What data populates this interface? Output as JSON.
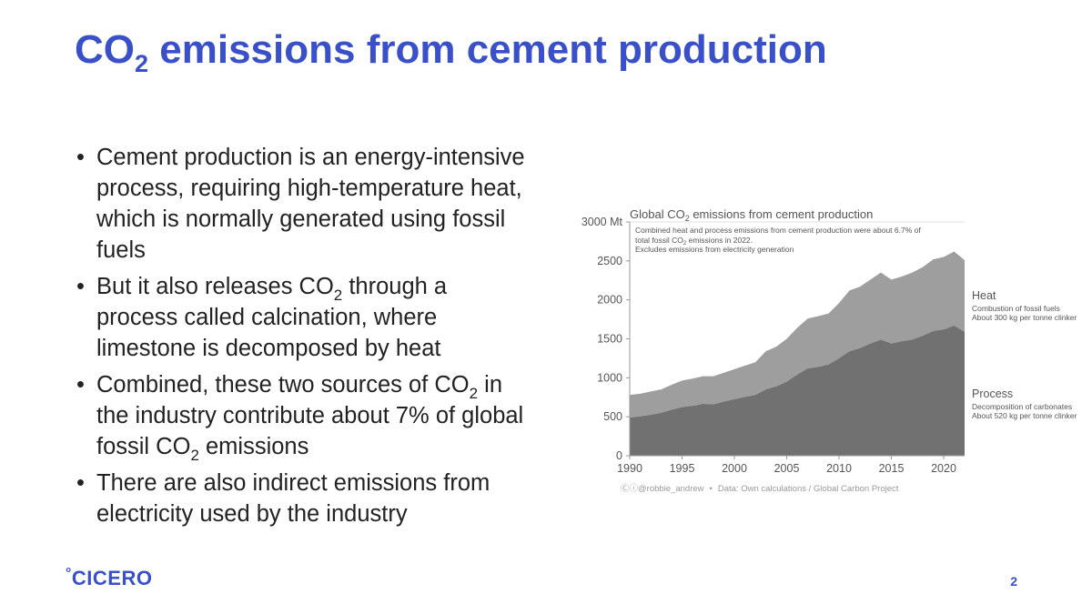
{
  "slide": {
    "title_main": "CO",
    "title_sub": "2",
    "title_rest": " emissions from cement production",
    "bullets": [
      {
        "a": "Cement production is an energy-intensive process, requiring high-temperature heat, which is normally generated using fossil fuels"
      },
      {
        "a": "But it also releases CO",
        "s": "2",
        "b": " through a process called calcination, where limestone is decomposed by heat"
      },
      {
        "a": "Combined, these two sources of CO",
        "s": "2",
        "b": " in the industry contribute about 7% of global fossil CO",
        "s2": "2",
        "c": " emissions"
      },
      {
        "a": "There are also indirect emissions from electricity used by the industry"
      }
    ],
    "logo_mark": "°",
    "logo_text": "CICERO",
    "page_number": "2"
  },
  "colors": {
    "accent": "#3950c9",
    "heat": "#9e9e9e",
    "process": "#717171"
  },
  "chart_data": {
    "type": "area",
    "title_pre": "Global CO",
    "title_sub": "2",
    "title_post": " emissions from cement production",
    "subtitle_lines": [
      {
        "a": "Combined heat and process emissions from cement production were about 6.7% of"
      },
      {
        "a": "total fossil CO",
        "s": "2",
        "b": " emissions in 2022."
      },
      {
        "a": "Excludes emissions from electricity generation"
      }
    ],
    "y_unit": "Mt",
    "ylim": [
      0,
      3000
    ],
    "y_ticks": [
      0,
      500,
      1000,
      1500,
      2000,
      2500,
      3000
    ],
    "xlim": [
      1990,
      2022
    ],
    "x_ticks": [
      1990,
      1995,
      2000,
      2005,
      2010,
      2015,
      2020
    ],
    "x": [
      1990,
      1991,
      1992,
      1993,
      1994,
      1995,
      1996,
      1997,
      1998,
      1999,
      2000,
      2001,
      2002,
      2003,
      2004,
      2005,
      2006,
      2007,
      2008,
      2009,
      2010,
      2011,
      2012,
      2013,
      2014,
      2015,
      2016,
      2017,
      2018,
      2019,
      2020,
      2021,
      2022
    ],
    "series": [
      {
        "name": "Process",
        "desc1": "Decomposition of carbonates",
        "desc2": "About 520 kg per tonne clinker",
        "values": [
          490,
          505,
          525,
          550,
          590,
          625,
          640,
          665,
          660,
          695,
          725,
          755,
          780,
          850,
          890,
          950,
          1040,
          1120,
          1140,
          1170,
          1250,
          1340,
          1380,
          1440,
          1490,
          1440,
          1470,
          1490,
          1540,
          1600,
          1620,
          1670,
          1590
        ]
      },
      {
        "name": "Heat",
        "desc1": "Combustion of fossil fuels",
        "desc2": "About 300 kg per tonne clinker",
        "values": [
          290,
          290,
          300,
          300,
          320,
          340,
          350,
          355,
          360,
          370,
          385,
          400,
          420,
          490,
          510,
          550,
          600,
          640,
          650,
          655,
          710,
          780,
          790,
          820,
          860,
          820,
          830,
          860,
          880,
          920,
          930,
          950,
          920
        ]
      }
    ],
    "footer_icons": "Ⓒⓘ",
    "footer_handle": "@robbie_andrew",
    "footer_sep": "•",
    "footer_source": "Data: Own calculations / Global Carbon Project"
  }
}
